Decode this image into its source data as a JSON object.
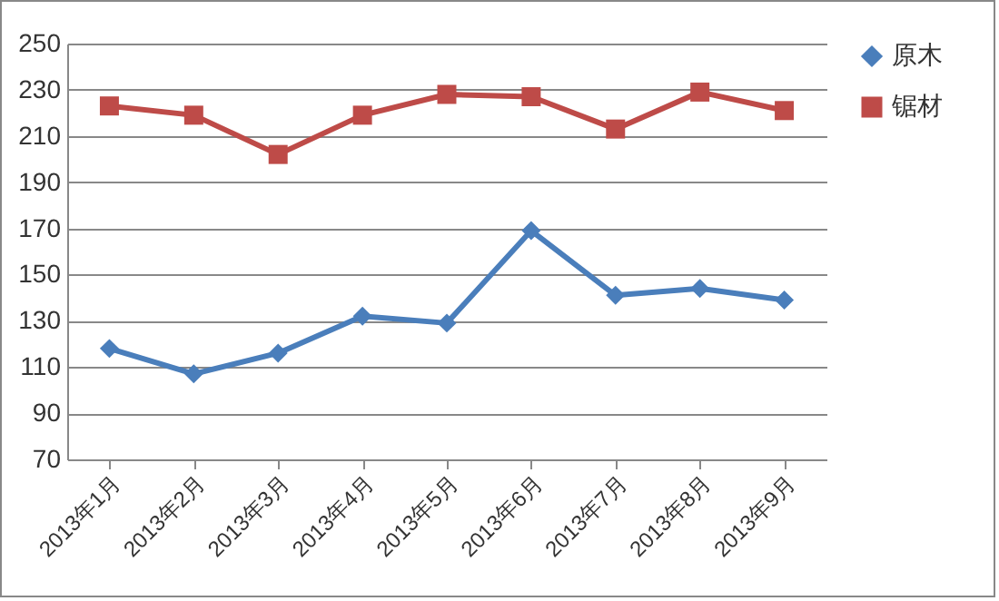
{
  "chart_data": {
    "type": "line",
    "categories": [
      "2013年1月",
      "2013年2月",
      "2013年3月",
      "2013年4月",
      "2013年5月",
      "2013年6月",
      "2013年7月",
      "2013年8月",
      "2013年9月"
    ],
    "series": [
      {
        "name": "原木",
        "color": "#4a7ebb",
        "marker": "diamond",
        "values": [
          118,
          107,
          116,
          132,
          129,
          169,
          141,
          144,
          139
        ]
      },
      {
        "name": "锯材",
        "color": "#be4b48",
        "marker": "square",
        "values": [
          223,
          219,
          202,
          219,
          228,
          227,
          213,
          229,
          221
        ]
      }
    ],
    "ylim": [
      70,
      250
    ],
    "yticks": [
      70,
      90,
      110,
      130,
      150,
      170,
      190,
      210,
      230,
      250
    ],
    "grid": "y",
    "legend": "right",
    "line_style": "solid"
  }
}
